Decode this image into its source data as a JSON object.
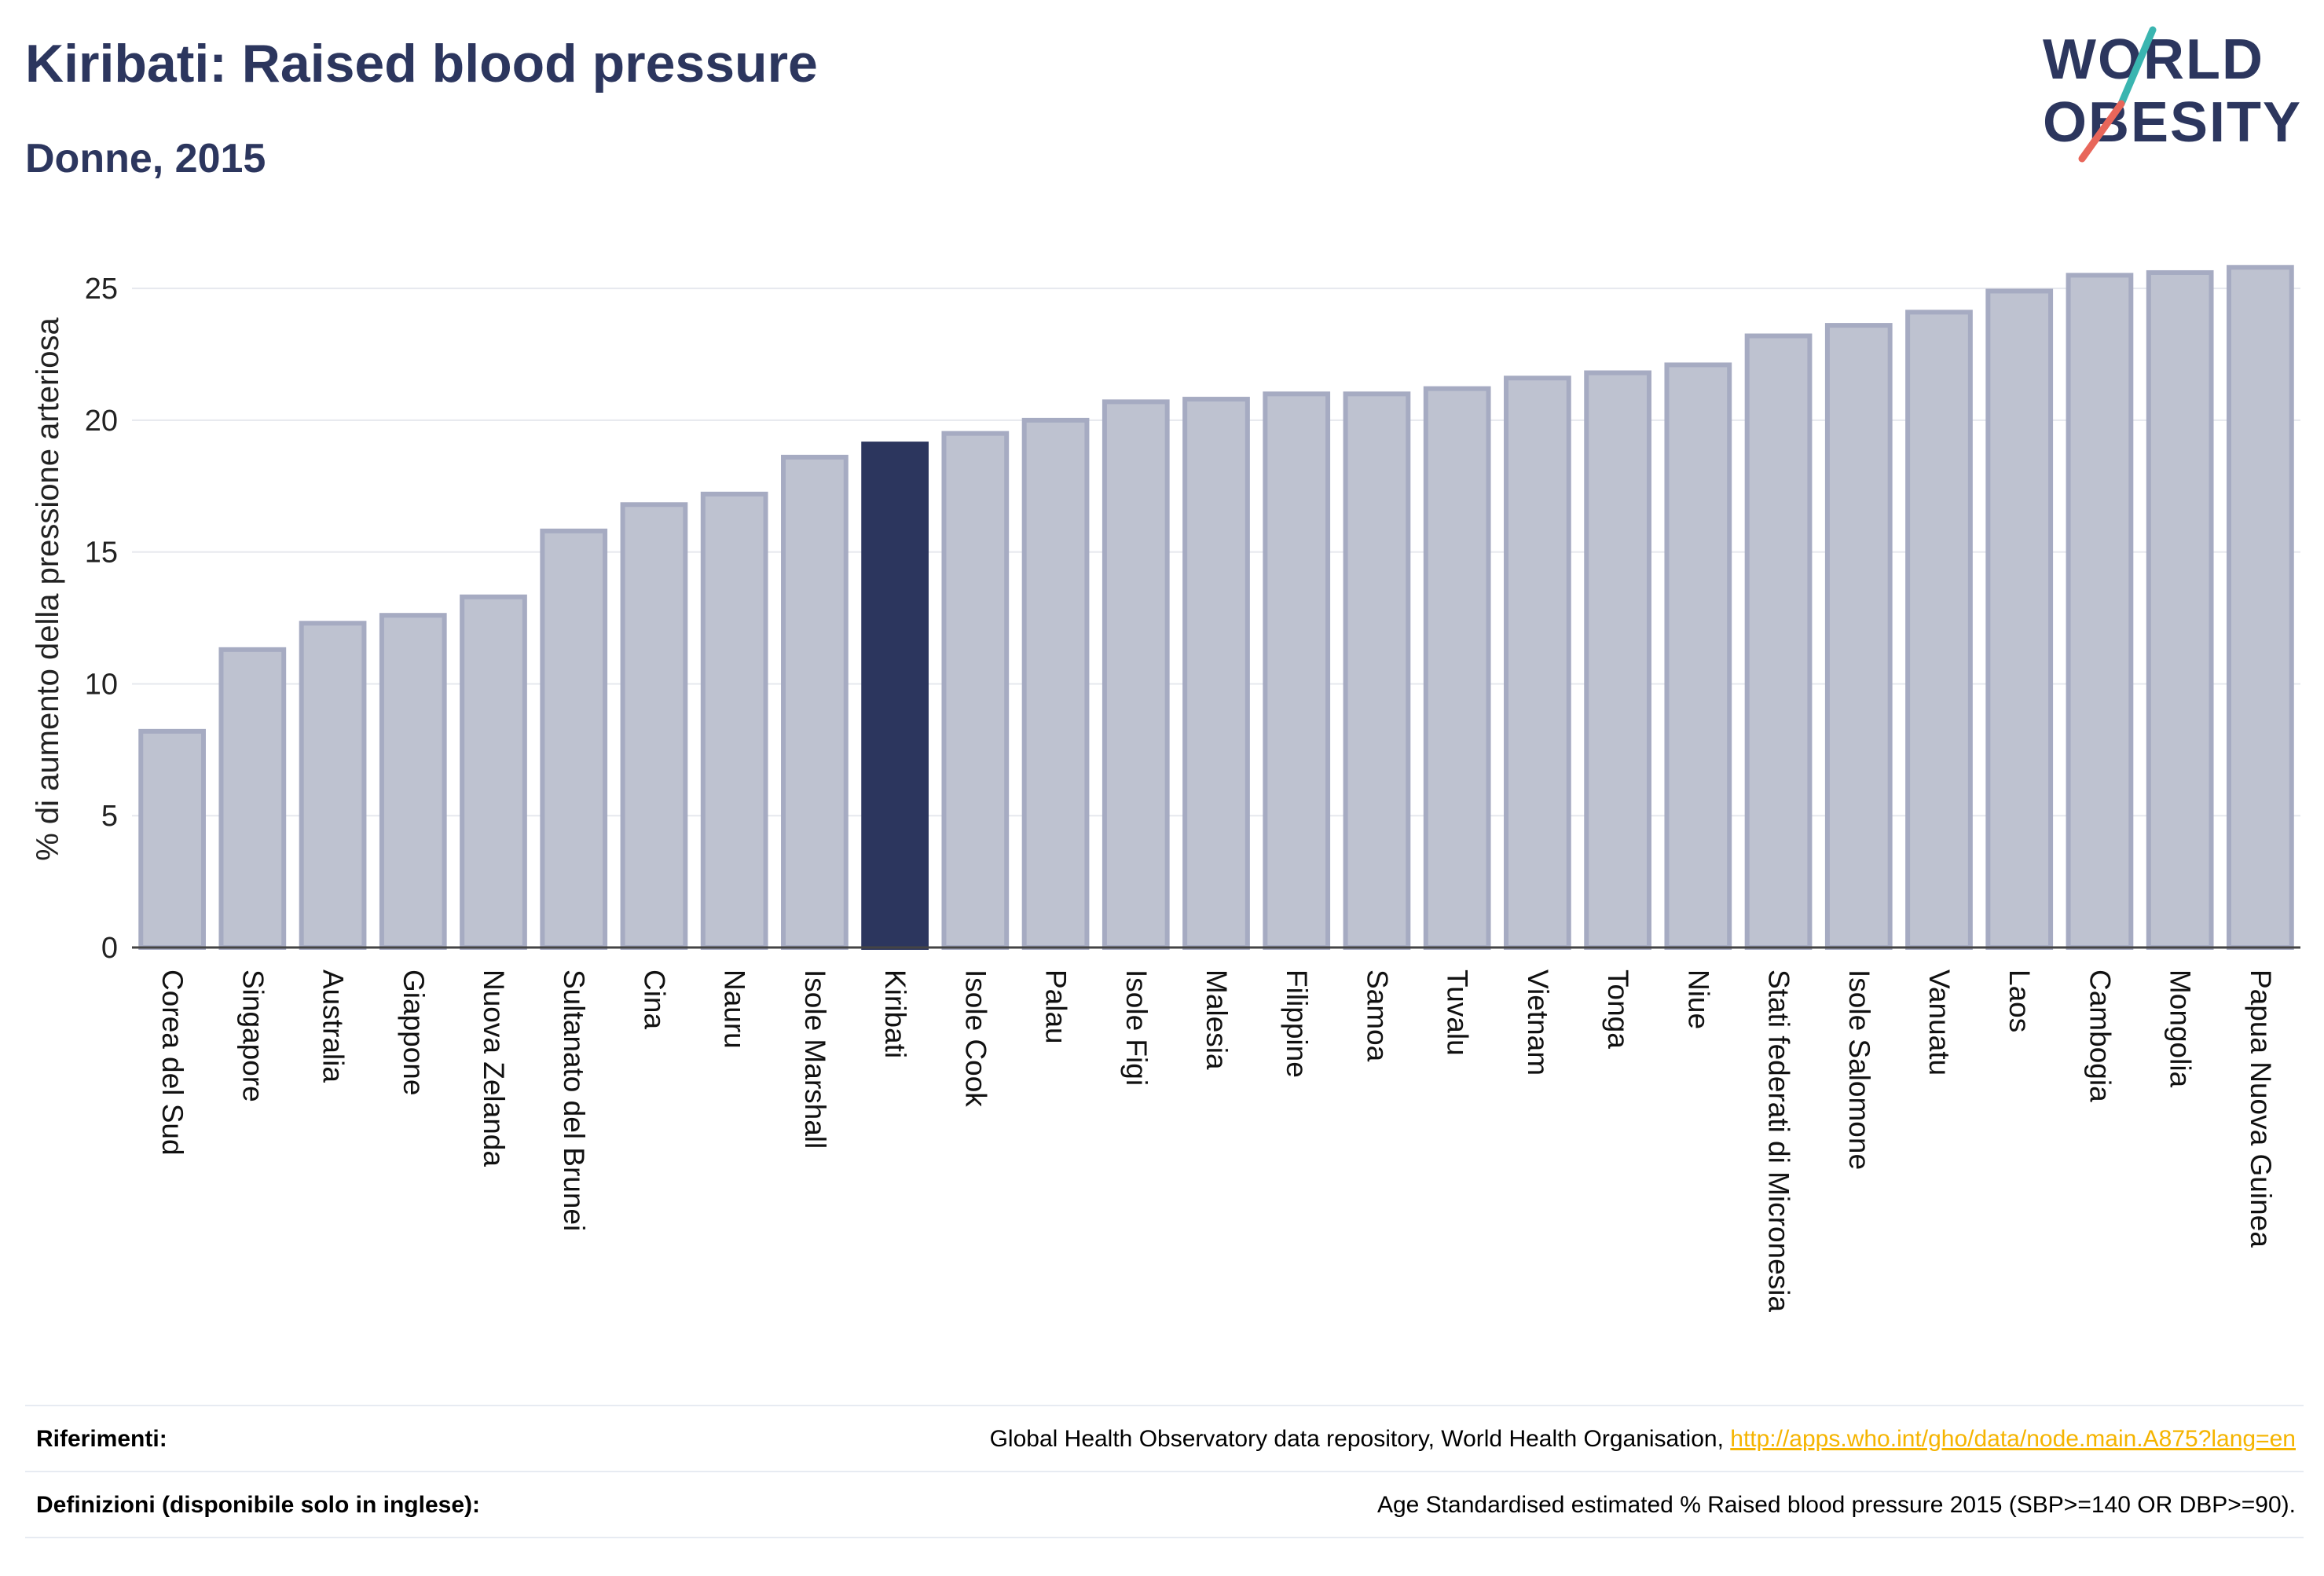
{
  "header": {
    "title": "Kiribati: Raised blood pressure",
    "subtitle": "Donne, 2015"
  },
  "logo": {
    "line1": "WORLD",
    "line2": "OBESITY"
  },
  "colors": {
    "bar": "#bec2d0",
    "bar_border": "#a6abc2",
    "highlight": "#2c365e",
    "axis": "#444444",
    "grid": "#e6e8ee"
  },
  "chart_data": {
    "type": "bar",
    "title": "Kiribati: Raised blood pressure",
    "subtitle": "Donne, 2015",
    "xlabel": "",
    "ylabel": "% di aumento della pressione arteriosa",
    "ylim": [
      0,
      27
    ],
    "yticks": [
      0,
      5,
      10,
      15,
      20,
      25
    ],
    "grid": true,
    "highlight": "Kiribati",
    "categories": [
      "Corea del Sud",
      "Singapore",
      "Australia",
      "Giappone",
      "Nuova Zelanda",
      "Sultanato del Brunei",
      "Cina",
      "Nauru",
      "Isole Marshall",
      "Kiribati",
      "Isole Cook",
      "Palau",
      "Isole Figi",
      "Malesia",
      "Filippine",
      "Samoa",
      "Tuvalu",
      "Vietnam",
      "Tonga",
      "Niue",
      "Stati federati di Micronesia",
      "Isole Salomone",
      "Vanuatu",
      "Laos",
      "Cambogia",
      "Mongolia",
      "Papua Nuova Guinea"
    ],
    "values": [
      8.2,
      11.3,
      12.3,
      12.6,
      13.3,
      15.8,
      16.8,
      17.2,
      18.6,
      19.1,
      19.5,
      20.0,
      20.7,
      20.8,
      21.0,
      21.0,
      21.2,
      21.6,
      21.8,
      22.1,
      23.2,
      23.6,
      24.1,
      24.9,
      25.5,
      25.6,
      25.8
    ]
  },
  "footer": {
    "references_label": "Riferimenti:",
    "references_text": "Global Health Observatory data repository, World Health Organisation, ",
    "references_link": "http://apps.who.int/gho/data/node.main.A875?lang=en",
    "definitions_label": "Definizioni (disponibile solo in inglese):",
    "definitions_text": "Age Standardised estimated % Raised blood pressure 2015 (SBP>=140 OR DBP>=90)."
  }
}
